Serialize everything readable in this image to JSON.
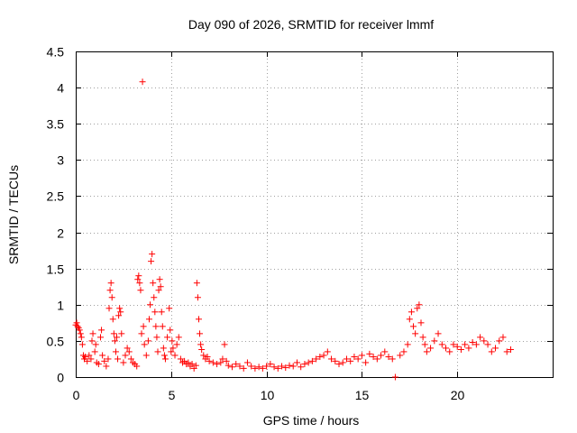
{
  "chart_data": {
    "type": "scatter",
    "title": "Day 090 of 2026, SRMTID for receiver lmmf",
    "xlabel": "GPS time / hours",
    "ylabel": "SRMTID / TECUs",
    "xlim": [
      0,
      25
    ],
    "ylim": [
      0,
      4.5
    ],
    "x_ticks": [
      0,
      5,
      10,
      15,
      20
    ],
    "x_tick_labels": [
      "0",
      "5",
      "10",
      "15",
      "20"
    ],
    "y_ticks": [
      0,
      0.5,
      1,
      1.5,
      2,
      2.5,
      3,
      3.5,
      4,
      4.5
    ],
    "y_tick_labels": [
      "0",
      "0.5",
      "1",
      "1.5",
      "2",
      "2.5",
      "3",
      "3.5",
      "4",
      "4.5"
    ],
    "grid": true,
    "marker": "+",
    "color": "#ff0000",
    "series": [
      {
        "name": "SRMTID",
        "points": [
          [
            0.0,
            0.72
          ],
          [
            0.05,
            0.75
          ],
          [
            0.1,
            0.7
          ],
          [
            0.15,
            0.68
          ],
          [
            0.2,
            0.65
          ],
          [
            0.25,
            0.6
          ],
          [
            0.3,
            0.55
          ],
          [
            0.35,
            0.45
          ],
          [
            0.4,
            0.3
          ],
          [
            0.45,
            0.25
          ],
          [
            0.5,
            0.28
          ],
          [
            0.6,
            0.22
          ],
          [
            0.7,
            0.3
          ],
          [
            0.8,
            0.25
          ],
          [
            0.85,
            0.5
          ],
          [
            0.9,
            0.6
          ],
          [
            1.0,
            0.35
          ],
          [
            1.05,
            0.45
          ],
          [
            1.1,
            0.2
          ],
          [
            1.2,
            0.18
          ],
          [
            1.3,
            0.55
          ],
          [
            1.35,
            0.65
          ],
          [
            1.4,
            0.3
          ],
          [
            1.5,
            0.22
          ],
          [
            1.6,
            0.15
          ],
          [
            1.7,
            0.25
          ],
          [
            1.75,
            0.95
          ],
          [
            1.8,
            1.2
          ],
          [
            1.85,
            1.3
          ],
          [
            1.9,
            1.1
          ],
          [
            1.95,
            0.8
          ],
          [
            2.0,
            0.6
          ],
          [
            2.05,
            0.5
          ],
          [
            2.1,
            0.35
          ],
          [
            2.15,
            0.55
          ],
          [
            2.2,
            0.25
          ],
          [
            2.25,
            0.85
          ],
          [
            2.3,
            0.95
          ],
          [
            2.35,
            0.9
          ],
          [
            2.4,
            0.6
          ],
          [
            2.5,
            0.2
          ],
          [
            2.6,
            0.3
          ],
          [
            2.7,
            0.4
          ],
          [
            2.8,
            0.35
          ],
          [
            2.9,
            0.25
          ],
          [
            3.0,
            0.2
          ],
          [
            3.1,
            0.18
          ],
          [
            3.2,
            0.15
          ],
          [
            3.25,
            1.35
          ],
          [
            3.3,
            1.4
          ],
          [
            3.35,
            1.3
          ],
          [
            3.4,
            1.2
          ],
          [
            3.45,
            0.6
          ],
          [
            3.5,
            4.08
          ],
          [
            3.55,
            0.7
          ],
          [
            3.6,
            0.45
          ],
          [
            3.7,
            0.3
          ],
          [
            3.8,
            0.5
          ],
          [
            3.85,
            0.8
          ],
          [
            3.9,
            1.0
          ],
          [
            3.95,
            1.6
          ],
          [
            4.0,
            1.7
          ],
          [
            4.05,
            1.3
          ],
          [
            4.1,
            1.1
          ],
          [
            4.15,
            0.9
          ],
          [
            4.2,
            0.7
          ],
          [
            4.25,
            0.55
          ],
          [
            4.3,
            0.35
          ],
          [
            4.35,
            1.2
          ],
          [
            4.4,
            1.35
          ],
          [
            4.45,
            1.25
          ],
          [
            4.5,
            0.9
          ],
          [
            4.55,
            0.7
          ],
          [
            4.6,
            0.4
          ],
          [
            4.65,
            0.3
          ],
          [
            4.7,
            0.25
          ],
          [
            4.8,
            0.55
          ],
          [
            4.9,
            0.95
          ],
          [
            4.95,
            0.65
          ],
          [
            5.0,
            0.35
          ],
          [
            5.05,
            0.5
          ],
          [
            5.1,
            0.4
          ],
          [
            5.2,
            0.3
          ],
          [
            5.3,
            0.45
          ],
          [
            5.4,
            0.55
          ],
          [
            5.5,
            0.25
          ],
          [
            5.6,
            0.2
          ],
          [
            5.7,
            0.22
          ],
          [
            5.8,
            0.18
          ],
          [
            5.9,
            0.2
          ],
          [
            6.0,
            0.15
          ],
          [
            6.1,
            0.18
          ],
          [
            6.2,
            0.12
          ],
          [
            6.3,
            0.16
          ],
          [
            6.35,
            1.3
          ],
          [
            6.4,
            1.1
          ],
          [
            6.45,
            0.8
          ],
          [
            6.5,
            0.6
          ],
          [
            6.55,
            0.45
          ],
          [
            6.6,
            0.38
          ],
          [
            6.7,
            0.3
          ],
          [
            6.8,
            0.25
          ],
          [
            6.9,
            0.28
          ],
          [
            7.0,
            0.22
          ],
          [
            7.2,
            0.2
          ],
          [
            7.4,
            0.18
          ],
          [
            7.6,
            0.2
          ],
          [
            7.7,
            0.25
          ],
          [
            7.8,
            0.45
          ],
          [
            7.9,
            0.22
          ],
          [
            8.0,
            0.16
          ],
          [
            8.2,
            0.14
          ],
          [
            8.4,
            0.18
          ],
          [
            8.6,
            0.15
          ],
          [
            8.8,
            0.12
          ],
          [
            9.0,
            0.2
          ],
          [
            9.2,
            0.15
          ],
          [
            9.4,
            0.12
          ],
          [
            9.6,
            0.14
          ],
          [
            9.8,
            0.12
          ],
          [
            10.0,
            0.15
          ],
          [
            10.2,
            0.18
          ],
          [
            10.4,
            0.14
          ],
          [
            10.6,
            0.12
          ],
          [
            10.8,
            0.15
          ],
          [
            11.0,
            0.13
          ],
          [
            11.2,
            0.16
          ],
          [
            11.4,
            0.15
          ],
          [
            11.6,
            0.2
          ],
          [
            11.8,
            0.14
          ],
          [
            12.0,
            0.18
          ],
          [
            12.2,
            0.2
          ],
          [
            12.4,
            0.22
          ],
          [
            12.6,
            0.25
          ],
          [
            12.8,
            0.28
          ],
          [
            13.0,
            0.3
          ],
          [
            13.2,
            0.35
          ],
          [
            13.4,
            0.25
          ],
          [
            13.6,
            0.22
          ],
          [
            13.8,
            0.18
          ],
          [
            14.0,
            0.2
          ],
          [
            14.2,
            0.25
          ],
          [
            14.4,
            0.22
          ],
          [
            14.6,
            0.28
          ],
          [
            14.8,
            0.25
          ],
          [
            15.0,
            0.3
          ],
          [
            15.2,
            0.2
          ],
          [
            15.4,
            0.32
          ],
          [
            15.6,
            0.28
          ],
          [
            15.8,
            0.25
          ],
          [
            16.0,
            0.3
          ],
          [
            16.2,
            0.35
          ],
          [
            16.4,
            0.28
          ],
          [
            16.6,
            0.25
          ],
          [
            16.75,
            0.0
          ],
          [
            17.0,
            0.3
          ],
          [
            17.2,
            0.35
          ],
          [
            17.4,
            0.45
          ],
          [
            17.5,
            0.8
          ],
          [
            17.6,
            0.9
          ],
          [
            17.7,
            0.7
          ],
          [
            17.8,
            0.6
          ],
          [
            17.9,
            0.95
          ],
          [
            18.0,
            1.0
          ],
          [
            18.1,
            0.75
          ],
          [
            18.2,
            0.55
          ],
          [
            18.3,
            0.45
          ],
          [
            18.4,
            0.35
          ],
          [
            18.6,
            0.4
          ],
          [
            18.8,
            0.5
          ],
          [
            19.0,
            0.6
          ],
          [
            19.2,
            0.45
          ],
          [
            19.4,
            0.4
          ],
          [
            19.6,
            0.35
          ],
          [
            19.8,
            0.45
          ],
          [
            20.0,
            0.42
          ],
          [
            20.2,
            0.38
          ],
          [
            20.4,
            0.45
          ],
          [
            20.6,
            0.4
          ],
          [
            20.8,
            0.48
          ],
          [
            21.0,
            0.45
          ],
          [
            21.2,
            0.55
          ],
          [
            21.4,
            0.5
          ],
          [
            21.6,
            0.45
          ],
          [
            21.8,
            0.35
          ],
          [
            22.0,
            0.4
          ],
          [
            22.2,
            0.5
          ],
          [
            22.4,
            0.55
          ],
          [
            22.6,
            0.35
          ],
          [
            22.8,
            0.38
          ]
        ]
      }
    ]
  }
}
